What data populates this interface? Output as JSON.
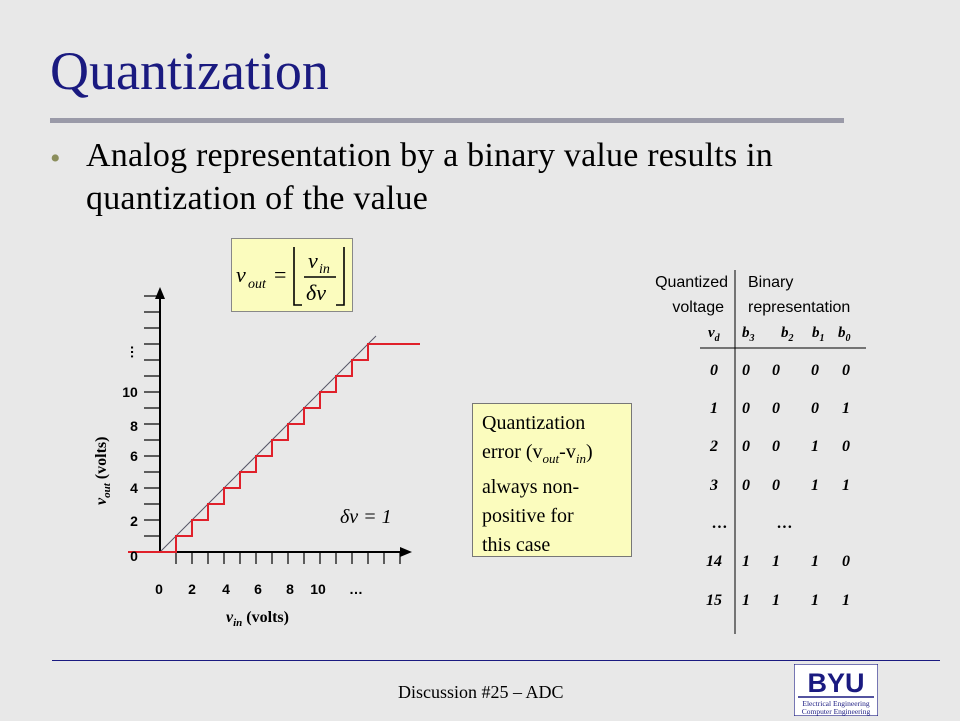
{
  "slide": {
    "title": "Quantization",
    "bullet": "Analog representation by a binary value results in quantization of the value",
    "footer": "Discussion #25 – ADC",
    "logo": {
      "wordmark": "BYU",
      "line1": "Electrical Engineering",
      "line2": "Computer Engineering"
    }
  },
  "formula": {
    "lhs": "v",
    "lhs_sub": "out",
    "equals": "=",
    "num": "v",
    "num_sub": "in",
    "den": "δv"
  },
  "graph": {
    "x_label": "v",
    "x_label_sub": "in",
    "x_label_rest": " (volts)",
    "y_label": "v",
    "y_label_sub": "out",
    "y_label_rest": " (volts)",
    "x_ticks": [
      "0",
      "2",
      "4",
      "6",
      "8",
      "10"
    ],
    "y_ticks": [
      "0",
      "2",
      "4",
      "6",
      "8",
      "10"
    ],
    "ellipsis": "…",
    "delta": "δv = 1"
  },
  "error_note": {
    "l1": "Quantization",
    "l2a": "error (v",
    "l2b": "out",
    "l2c": "-v",
    "l2d": "in",
    "l2e": ")",
    "l3": "always non-",
    "l4": "positive for",
    "l5": "this case"
  },
  "table": {
    "header_left_1": "Quantized",
    "header_left_2": "voltage",
    "header_right_1": "Binary",
    "header_right_2": "representation",
    "col_vd": "v",
    "col_vd_sub": "d",
    "col_bits": [
      {
        "b": "b",
        "s": "3"
      },
      {
        "b": "b",
        "s": "2"
      },
      {
        "b": "b",
        "s": "1"
      },
      {
        "b": "b",
        "s": "0"
      }
    ],
    "rows": [
      [
        "0",
        "0",
        "0",
        "0",
        "0"
      ],
      [
        "1",
        "0",
        "0",
        "0",
        "1"
      ],
      [
        "2",
        "0",
        "0",
        "1",
        "0"
      ],
      [
        "3",
        "0",
        "0",
        "1",
        "1"
      ],
      [
        "…",
        "…",
        "",
        "",
        ""
      ],
      [
        "14",
        "1",
        "1",
        "1",
        "0"
      ],
      [
        "15",
        "1",
        "1",
        "1",
        "1"
      ]
    ]
  },
  "colors": {
    "title": "#1a1a80",
    "staircase": "#e0202a",
    "box_fill": "#fbfcbe"
  }
}
